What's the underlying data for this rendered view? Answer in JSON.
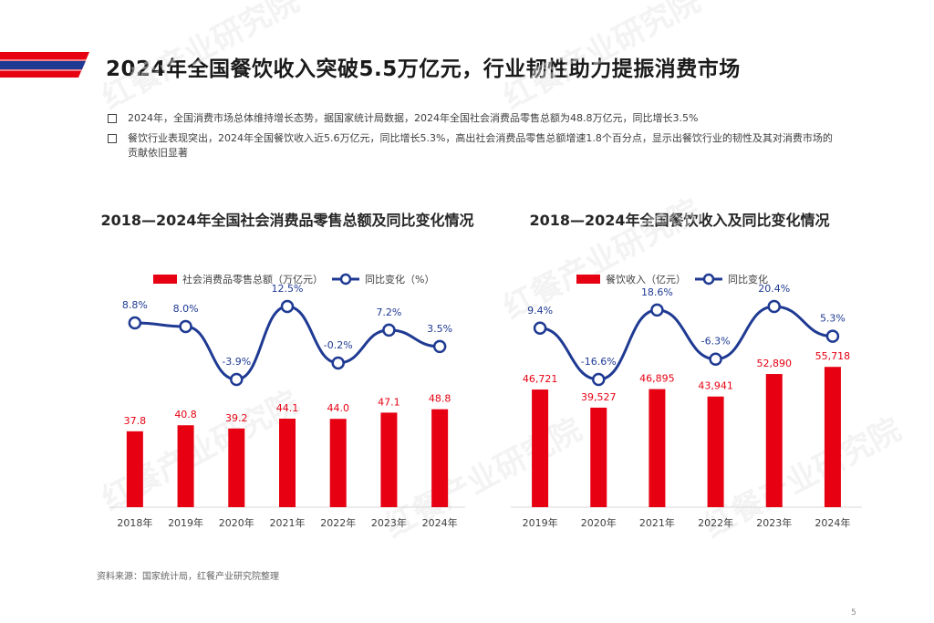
{
  "page": {
    "title": "2024年全国餐饮收入突破5.5万亿元，行业韧性助力提振消费市场",
    "bullets": [
      "2024年，全国消费市场总体维持增长态势，据国家统计局数据，2024年全国社会消费品零售总额为48.8万亿元，同比增长3.5%",
      "餐饮行业表现突出，2024年全国餐饮收入近5.6万亿元，同比增长5.3%，高出社会消费品零售总额增速1.8个百分点，显示出餐饮行业的韧性及其对消费市场的贡献依旧显著"
    ],
    "source": "资料来源：国家统计局，红餐产业研究院整理",
    "page_number": "5",
    "watermark": "红餐产业研究院"
  },
  "chart_data": [
    {
      "type": "bar+line",
      "title": "2018—2024年全国社会消费品零售总额及同比变化情况",
      "categories": [
        "2018年",
        "2019年",
        "2020年",
        "2021年",
        "2022年",
        "2023年",
        "2024年"
      ],
      "series": [
        {
          "name": "社会消费品零售总额（万亿元）",
          "kind": "bar",
          "values": [
            37.8,
            40.8,
            39.2,
            44.1,
            44.0,
            47.1,
            48.8
          ],
          "labels": [
            "37.8",
            "40.8",
            "39.2",
            "44.1",
            "44.0",
            "47.1",
            "48.8"
          ],
          "color": "#E60012"
        },
        {
          "name": "同比变化（%）",
          "kind": "line",
          "values": [
            8.8,
            8.0,
            -3.9,
            12.5,
            -0.2,
            7.2,
            3.5
          ],
          "labels": [
            "8.8%",
            "8.0%",
            "-3.9%",
            "12.5%",
            "-0.2%",
            "7.2%",
            "3.5%"
          ],
          "color": "#1F3A93"
        }
      ],
      "bar_ylim": [
        0,
        120
      ],
      "line_ylim": [
        -12,
        40
      ]
    },
    {
      "type": "bar+line",
      "title": "2018—2024年全国餐饮收入及同比变化情况",
      "categories": [
        "2019年",
        "2020年",
        "2021年",
        "2022年",
        "2023年",
        "2024年"
      ],
      "series": [
        {
          "name": "餐饮收入（亿元）",
          "kind": "bar",
          "values": [
            46721,
            39527,
            46895,
            43941,
            52890,
            55718
          ],
          "labels": [
            "46,721",
            "39,527",
            "46,895",
            "43,941",
            "52,890",
            "55,718"
          ],
          "color": "#E60012"
        },
        {
          "name": "同比变化",
          "kind": "line",
          "values": [
            9.4,
            -16.6,
            18.6,
            -6.3,
            20.4,
            5.3
          ],
          "labels": [
            "9.4%",
            "-16.6%",
            "18.6%",
            "-6.3%",
            "20.4%",
            "5.3%"
          ],
          "color": "#1F3A93"
        }
      ],
      "bar_ylim": [
        0,
        90000
      ],
      "line_ylim": [
        -40,
        100
      ]
    }
  ]
}
